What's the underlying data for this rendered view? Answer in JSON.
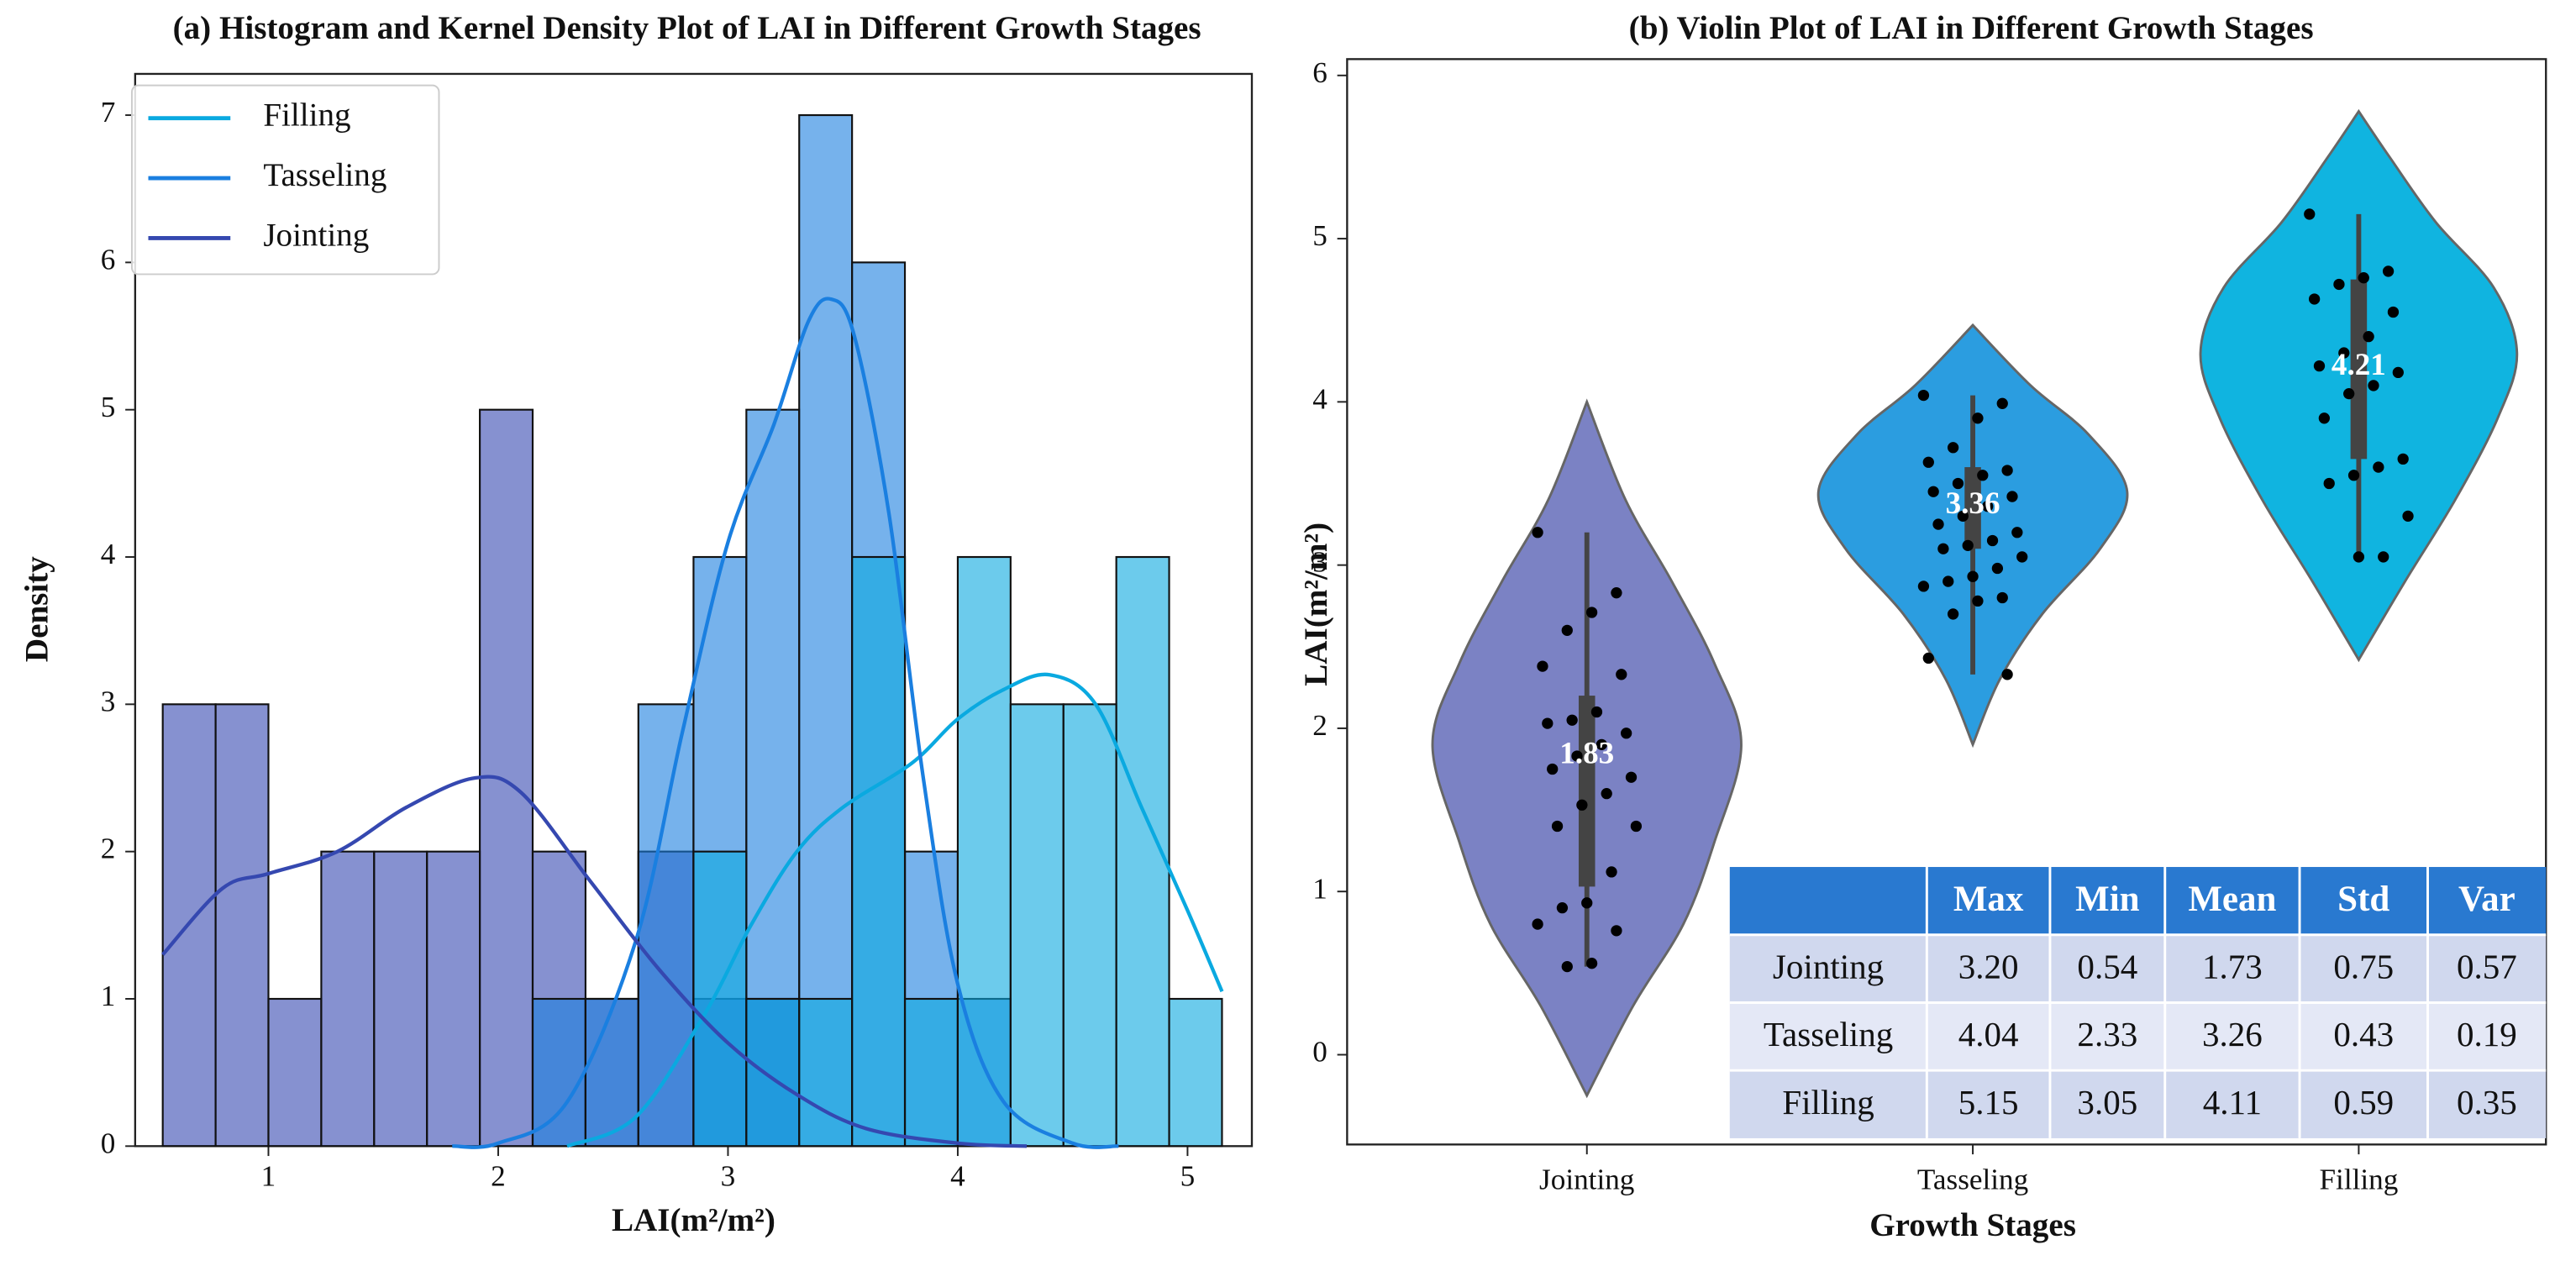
{
  "chart_data": [
    {
      "type": "histogram",
      "title": "(a) Histogram and Kernel Density Plot of LAI in Different Growth Stages",
      "xlabel": "LAI(m²/m²)",
      "ylabel": "Density",
      "bins": [
        0.54,
        0.77,
        1.0,
        1.23,
        1.46,
        1.69,
        1.92,
        2.15,
        2.38,
        2.61,
        2.85,
        3.08,
        3.31,
        3.54,
        3.77,
        4.0,
        4.23,
        4.46,
        4.69,
        4.92,
        5.15
      ],
      "series": [
        {
          "name": "Filling",
          "color": "#0aa9e0",
          "values": [
            0,
            0,
            0,
            0,
            0,
            0,
            0,
            0,
            0,
            0,
            2,
            1,
            1,
            4,
            1,
            4,
            3,
            3,
            4,
            1
          ],
          "kde": {
            "x": [
              2.3,
              2.6,
              2.9,
              3.1,
              3.3,
              3.5,
              3.8,
              4.0,
              4.2,
              4.4,
              4.6,
              4.8,
              5.0,
              5.15
            ],
            "y": [
              0,
              0.2,
              0.9,
              1.5,
              2.0,
              2.3,
              2.6,
              2.9,
              3.1,
              3.2,
              3.0,
              2.3,
              1.6,
              1.05
            ]
          }
        },
        {
          "name": "Tasseling",
          "color": "#1a7fe0",
          "values": [
            0,
            0,
            0,
            0,
            0,
            0,
            0,
            1,
            1,
            3,
            4,
            5,
            7,
            6,
            2,
            1,
            0,
            0,
            0,
            0
          ],
          "kde": {
            "x": [
              1.8,
              2.0,
              2.3,
              2.6,
              2.8,
              3.0,
              3.2,
              3.35,
              3.45,
              3.55,
              3.7,
              3.85,
              4.0,
              4.2,
              4.5,
              4.7
            ],
            "y": [
              0,
              0.02,
              0.3,
              1.4,
              2.8,
              4.1,
              4.9,
              5.6,
              5.75,
              5.5,
              4.3,
              2.5,
              1.1,
              0.3,
              0.02,
              0
            ]
          }
        },
        {
          "name": "Jointing",
          "color": "#3548b0",
          "values": [
            3,
            3,
            1,
            2,
            2,
            2,
            5,
            2,
            1,
            2,
            1,
            1,
            0,
            0,
            0,
            0,
            0,
            0,
            0,
            0
          ],
          "kde": {
            "x": [
              0.54,
              0.8,
              1.0,
              1.3,
              1.6,
              1.9,
              2.1,
              2.4,
              2.7,
              3.0,
              3.3,
              3.6,
              4.0,
              4.3
            ],
            "y": [
              1.3,
              1.75,
              1.85,
              2.0,
              2.3,
              2.5,
              2.4,
              1.8,
              1.2,
              0.7,
              0.35,
              0.12,
              0.02,
              0
            ]
          }
        }
      ],
      "xlim": [
        0.42,
        5.28
      ],
      "ylim": [
        0,
        7.28
      ],
      "xticks": [
        1,
        2,
        3,
        4,
        5
      ],
      "yticks": [
        0,
        1,
        2,
        3,
        4,
        5,
        6,
        7
      ],
      "legend": "upper left"
    },
    {
      "type": "violin",
      "title": "(b) Violin Plot of LAI in Different Growth Stages",
      "xlabel": "Growth Stages",
      "ylabel": "LAI(m²/m²)",
      "categories": [
        "Jointing",
        "Tasseling",
        "Filling"
      ],
      "colors": [
        "#7b82c4",
        "#2b9de0",
        "#10b4e0"
      ],
      "ylim": [
        -0.55,
        6.1
      ],
      "yticks": [
        0,
        1,
        2,
        3,
        4,
        5,
        6
      ],
      "violins": [
        {
          "y": [
            -0.25,
            0.3,
            0.8,
            1.3,
            1.9,
            2.4,
            2.9,
            3.4,
            4.0
          ],
          "width": [
            0,
            0.12,
            0.25,
            0.33,
            0.4,
            0.33,
            0.22,
            0.1,
            0
          ]
        },
        {
          "y": [
            1.9,
            2.3,
            2.7,
            3.1,
            3.45,
            3.8,
            4.1,
            4.47
          ],
          "width": [
            0,
            0.07,
            0.18,
            0.33,
            0.4,
            0.3,
            0.15,
            0
          ]
        },
        {
          "y": [
            2.42,
            2.9,
            3.4,
            3.9,
            4.3,
            4.7,
            5.1,
            5.5,
            5.78
          ],
          "width": [
            0,
            0.12,
            0.25,
            0.36,
            0.41,
            0.35,
            0.2,
            0.08,
            0
          ]
        }
      ],
      "whisker_min": [
        0.54,
        2.33,
        3.05
      ],
      "whisker_max": [
        3.2,
        4.04,
        5.15
      ],
      "q1": [
        1.03,
        3.1,
        3.65
      ],
      "q3": [
        2.2,
        3.6,
        4.75
      ],
      "medians": [
        1.83,
        3.36,
        4.21
      ],
      "points": [
        [
          3.2,
          2.83,
          2.71,
          2.6,
          2.38,
          2.33,
          2.1,
          2.05,
          2.03,
          1.97,
          1.9,
          1.83,
          1.75,
          1.7,
          1.6,
          1.53,
          1.4,
          1.4,
          1.12,
          0.93,
          0.9,
          0.8,
          0.76,
          0.56,
          0.54
        ],
        [
          4.04,
          3.99,
          3.9,
          3.72,
          3.63,
          3.58,
          3.55,
          3.5,
          3.45,
          3.42,
          3.36,
          3.3,
          3.25,
          3.2,
          3.15,
          3.12,
          3.1,
          3.05,
          2.98,
          2.93,
          2.9,
          2.87,
          2.8,
          2.78,
          2.7,
          2.43,
          2.33
        ],
        [
          5.15,
          4.8,
          4.76,
          4.72,
          4.63,
          4.55,
          4.4,
          4.3,
          4.22,
          4.18,
          4.1,
          4.05,
          3.9,
          3.65,
          3.6,
          3.55,
          3.5,
          3.3,
          3.05,
          3.05
        ]
      ],
      "table": {
        "columns": [
          "Max",
          "Min",
          "Mean",
          "Std",
          "Var"
        ],
        "rows": [
          [
            "Jointing",
            "3.20",
            "0.54",
            "1.73",
            "0.75",
            "0.57"
          ],
          [
            "Tasseling",
            "4.04",
            "2.33",
            "3.26",
            "0.43",
            "0.19"
          ],
          [
            "Filling",
            "5.15",
            "3.05",
            "4.11",
            "0.59",
            "0.35"
          ]
        ]
      }
    }
  ]
}
